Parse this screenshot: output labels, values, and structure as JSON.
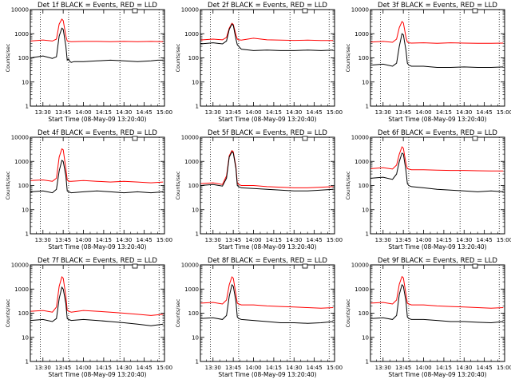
{
  "figure": {
    "background": "#ffffff",
    "event_color": "#000000",
    "lld_color": "#ff0000"
  },
  "chart_data": [
    {
      "type": "line",
      "title": "Det 1f BLACK = Events, RED = LLD",
      "xlabel": "Start Time (08-May-09 13:20:40)",
      "ylabel": "Counts/sec",
      "xticks": [
        "13:30",
        "13:45",
        "14:00",
        "14:15",
        "14:30",
        "14:45",
        "15:00"
      ],
      "xlim_minutes": [
        20.67,
        120
      ],
      "yscale": "log",
      "ylim": [
        1,
        10000
      ],
      "yticks": [
        "1",
        "10",
        "100",
        "1000",
        "10000"
      ],
      "vlines_minutes": [
        28,
        49,
        87,
        116
      ],
      "series": [
        {
          "name": "Events",
          "color": "#000000",
          "x": [
            21,
            30,
            37,
            40,
            42,
            44,
            45,
            47,
            48,
            49,
            50,
            51,
            53,
            60,
            70,
            80,
            90,
            100,
            110,
            115,
            119
          ],
          "y": [
            100,
            120,
            95,
            110,
            800,
            1700,
            1500,
            300,
            80,
            90,
            70,
            65,
            70,
            70,
            75,
            80,
            75,
            70,
            75,
            80,
            80
          ]
        },
        {
          "name": "LLD",
          "color": "#ff0000",
          "x": [
            21,
            30,
            37,
            40,
            42,
            44,
            45,
            47,
            48,
            49,
            51,
            60,
            70,
            80,
            90,
            100,
            110,
            119
          ],
          "y": [
            500,
            550,
            500,
            600,
            2500,
            4000,
            3500,
            800,
            500,
            480,
            470,
            480,
            480,
            470,
            480,
            470,
            480,
            470
          ]
        }
      ]
    },
    {
      "type": "line",
      "title": "Det 2f BLACK = Events, RED = LLD",
      "xlabel": "Start Time (08-May-09 13:20:40)",
      "ylabel": "Counts/sec",
      "xticks": [
        "13:30",
        "13:45",
        "14:00",
        "14:15",
        "14:30",
        "14:45",
        "15:00"
      ],
      "xlim_minutes": [
        20.67,
        120
      ],
      "yscale": "log",
      "ylim": [
        1,
        10000
      ],
      "yticks": [
        "1",
        "10",
        "100",
        "1000",
        "10000"
      ],
      "vlines_minutes": [
        28,
        49,
        87,
        116
      ],
      "series": [
        {
          "name": "Events",
          "color": "#000000",
          "x": [
            21,
            30,
            37,
            40,
            42,
            44,
            45,
            47,
            48,
            49,
            51,
            60,
            70,
            80,
            90,
            100,
            110,
            119
          ],
          "y": [
            380,
            420,
            380,
            500,
            1500,
            2500,
            2200,
            600,
            350,
            300,
            230,
            200,
            210,
            200,
            200,
            210,
            200,
            210
          ]
        },
        {
          "name": "LLD",
          "color": "#ff0000",
          "x": [
            21,
            30,
            37,
            40,
            42,
            44,
            45,
            47,
            48,
            49,
            51,
            60,
            70,
            80,
            90,
            100,
            110,
            119
          ],
          "y": [
            550,
            600,
            560,
            700,
            1700,
            2700,
            2400,
            900,
            600,
            560,
            540,
            650,
            560,
            540,
            530,
            540,
            520,
            520
          ]
        }
      ]
    },
    {
      "type": "line",
      "title": "Det 3f BLACK = Events, RED = LLD",
      "xlabel": "Start Time (08-May-09 13:20:40)",
      "ylabel": "Counts/sec",
      "xticks": [
        "13:30",
        "13:45",
        "14:00",
        "14:15",
        "14:30",
        "14:45",
        "15:00"
      ],
      "xlim_minutes": [
        20.67,
        120
      ],
      "yscale": "log",
      "ylim": [
        1,
        10000
      ],
      "yticks": [
        "1",
        "10",
        "100",
        "1000",
        "10000"
      ],
      "vlines_minutes": [
        28,
        49,
        87,
        116
      ],
      "series": [
        {
          "name": "Events",
          "color": "#000000",
          "x": [
            21,
            30,
            37,
            40,
            42,
            44,
            45,
            47,
            48,
            49,
            51,
            60,
            70,
            80,
            90,
            100,
            110,
            119
          ],
          "y": [
            50,
            55,
            45,
            60,
            300,
            1000,
            900,
            200,
            60,
            50,
            45,
            45,
            40,
            40,
            42,
            40,
            40,
            42
          ]
        },
        {
          "name": "LLD",
          "color": "#ff0000",
          "x": [
            21,
            30,
            37,
            40,
            42,
            44,
            45,
            47,
            48,
            49,
            51,
            60,
            70,
            80,
            90,
            100,
            110,
            119
          ],
          "y": [
            450,
            480,
            440,
            600,
            1800,
            3200,
            2800,
            700,
            450,
            420,
            410,
            420,
            400,
            420,
            410,
            400,
            400,
            410
          ]
        }
      ]
    },
    {
      "type": "line",
      "title": "Det 4f BLACK = Events, RED = LLD",
      "xlabel": "Start Time (08-May-09 13:20:40)",
      "ylabel": "Counts/sec",
      "xticks": [
        "13:30",
        "13:45",
        "14:00",
        "14:15",
        "14:30",
        "14:45",
        "15:00"
      ],
      "xlim_minutes": [
        20.67,
        120
      ],
      "yscale": "log",
      "ylim": [
        1,
        10000
      ],
      "yticks": [
        "1",
        "10",
        "100",
        "1000",
        "10000"
      ],
      "vlines_minutes": [
        28,
        49,
        87,
        116
      ],
      "series": [
        {
          "name": "Events",
          "color": "#000000",
          "x": [
            21,
            30,
            37,
            40,
            42,
            44,
            45,
            47,
            48,
            49,
            51,
            60,
            70,
            80,
            90,
            100,
            110,
            119
          ],
          "y": [
            55,
            60,
            50,
            70,
            400,
            1100,
            1000,
            250,
            60,
            55,
            50,
            55,
            60,
            55,
            50,
            55,
            50,
            55
          ]
        },
        {
          "name": "LLD",
          "color": "#ff0000",
          "x": [
            21,
            30,
            37,
            40,
            42,
            44,
            45,
            47,
            48,
            49,
            51,
            60,
            70,
            80,
            90,
            100,
            110,
            119
          ],
          "y": [
            160,
            170,
            150,
            200,
            1500,
            3300,
            3000,
            500,
            170,
            150,
            150,
            160,
            150,
            140,
            150,
            140,
            130,
            140
          ]
        }
      ]
    },
    {
      "type": "line",
      "title": "Det 5f BLACK = Events, RED = LLD",
      "xlabel": "Start Time (08-May-09 13:20:40)",
      "ylabel": "Counts/sec",
      "xticks": [
        "13:30",
        "13:45",
        "14:00",
        "14:15",
        "14:30",
        "14:45",
        "15:00"
      ],
      "xlim_minutes": [
        20.67,
        120
      ],
      "yscale": "log",
      "ylim": [
        1,
        10000
      ],
      "yticks": [
        "1",
        "10",
        "100",
        "1000",
        "10000"
      ],
      "vlines_minutes": [
        28,
        49,
        87,
        116
      ],
      "series": [
        {
          "name": "Events",
          "color": "#000000",
          "x": [
            21,
            30,
            37,
            40,
            42,
            44,
            45,
            47,
            48,
            49,
            51,
            60,
            70,
            80,
            90,
            100,
            110,
            119
          ],
          "y": [
            100,
            110,
            95,
            200,
            1500,
            2500,
            2200,
            500,
            100,
            90,
            80,
            75,
            70,
            65,
            60,
            60,
            65,
            70
          ]
        },
        {
          "name": "LLD",
          "color": "#ff0000",
          "x": [
            21,
            30,
            37,
            40,
            42,
            44,
            45,
            47,
            48,
            49,
            51,
            60,
            70,
            80,
            90,
            100,
            110,
            119
          ],
          "y": [
            120,
            130,
            110,
            250,
            1700,
            2800,
            2500,
            600,
            130,
            110,
            100,
            100,
            90,
            85,
            80,
            80,
            85,
            90
          ]
        }
      ]
    },
    {
      "type": "line",
      "title": "Det 6f BLACK = Events, RED = LLD",
      "xlabel": "Start Time (08-May-09 13:20:40)",
      "ylabel": "Counts/sec",
      "xticks": [
        "13:30",
        "13:45",
        "14:00",
        "14:15",
        "14:30",
        "14:45",
        "15:00"
      ],
      "xlim_minutes": [
        20.67,
        120
      ],
      "yscale": "log",
      "ylim": [
        1,
        10000
      ],
      "yticks": [
        "1",
        "10",
        "100",
        "1000",
        "10000"
      ],
      "vlines_minutes": [
        28,
        49,
        87,
        116
      ],
      "series": [
        {
          "name": "Events",
          "color": "#000000",
          "x": [
            21,
            30,
            37,
            40,
            42,
            44,
            45,
            47,
            48,
            49,
            51,
            60,
            70,
            80,
            90,
            100,
            110,
            119
          ],
          "y": [
            200,
            220,
            180,
            300,
            1000,
            2200,
            2000,
            400,
            120,
            100,
            90,
            80,
            70,
            65,
            60,
            55,
            60,
            55
          ]
        },
        {
          "name": "LLD",
          "color": "#ff0000",
          "x": [
            21,
            30,
            37,
            40,
            42,
            44,
            45,
            47,
            48,
            49,
            51,
            60,
            70,
            80,
            90,
            100,
            110,
            119
          ],
          "y": [
            500,
            550,
            480,
            700,
            2000,
            4000,
            3500,
            800,
            500,
            480,
            450,
            450,
            430,
            420,
            420,
            410,
            400,
            400
          ]
        }
      ]
    },
    {
      "type": "line",
      "title": "Det 7f BLACK = Events, RED = LLD",
      "xlabel": "Start Time (08-May-09 13:20:40)",
      "ylabel": "Counts/sec",
      "xticks": [
        "13:30",
        "13:45",
        "14:00",
        "14:15",
        "14:30",
        "14:45",
        "15:00"
      ],
      "xlim_minutes": [
        20.67,
        120
      ],
      "yscale": "log",
      "ylim": [
        1,
        10000
      ],
      "yticks": [
        "1",
        "10",
        "100",
        "1000",
        "10000"
      ],
      "vlines_minutes": [
        28,
        49,
        87,
        116
      ],
      "series": [
        {
          "name": "Events",
          "color": "#000000",
          "x": [
            21,
            30,
            37,
            40,
            42,
            44,
            45,
            47,
            48,
            49,
            51,
            60,
            70,
            80,
            90,
            100,
            110,
            119
          ],
          "y": [
            50,
            55,
            45,
            60,
            400,
            1200,
            1000,
            250,
            60,
            55,
            50,
            55,
            50,
            45,
            40,
            35,
            30,
            35
          ]
        },
        {
          "name": "LLD",
          "color": "#ff0000",
          "x": [
            21,
            30,
            37,
            40,
            42,
            44,
            45,
            47,
            48,
            49,
            51,
            60,
            70,
            80,
            90,
            100,
            110,
            119
          ],
          "y": [
            120,
            130,
            110,
            180,
            1300,
            3200,
            2800,
            500,
            130,
            120,
            110,
            130,
            120,
            110,
            100,
            90,
            80,
            90
          ]
        }
      ]
    },
    {
      "type": "line",
      "title": "Det 8f BLACK = Events, RED = LLD",
      "xlabel": "Start Time (08-May-09 13:20:40)",
      "ylabel": "Counts/sec",
      "xticks": [
        "13:30",
        "13:45",
        "14:00",
        "14:15",
        "14:30",
        "14:45",
        "15:00"
      ],
      "xlim_minutes": [
        20.67,
        120
      ],
      "yscale": "log",
      "ylim": [
        1,
        10000
      ],
      "yticks": [
        "1",
        "10",
        "100",
        "1000",
        "10000"
      ],
      "vlines_minutes": [
        28,
        49,
        87,
        116
      ],
      "series": [
        {
          "name": "Events",
          "color": "#000000",
          "x": [
            21,
            30,
            37,
            40,
            42,
            44,
            45,
            47,
            48,
            49,
            51,
            60,
            70,
            80,
            90,
            100,
            110,
            119
          ],
          "y": [
            60,
            65,
            55,
            80,
            500,
            1500,
            1300,
            300,
            70,
            60,
            55,
            50,
            45,
            40,
            40,
            38,
            40,
            45
          ]
        },
        {
          "name": "LLD",
          "color": "#ff0000",
          "x": [
            21,
            30,
            37,
            40,
            42,
            44,
            45,
            47,
            48,
            49,
            51,
            60,
            70,
            80,
            90,
            100,
            110,
            119
          ],
          "y": [
            260,
            280,
            240,
            350,
            1500,
            3200,
            2800,
            600,
            260,
            240,
            220,
            220,
            200,
            190,
            180,
            170,
            160,
            170
          ]
        }
      ]
    },
    {
      "type": "line",
      "title": "Det 9f BLACK = Events, RED = LLD",
      "xlabel": "Start Time (08-May-09 13:20:40)",
      "ylabel": "Counts/sec",
      "xticks": [
        "13:30",
        "13:45",
        "14:00",
        "14:15",
        "14:30",
        "14:45",
        "15:00"
      ],
      "xlim_minutes": [
        20.67,
        120
      ],
      "yscale": "log",
      "ylim": [
        1,
        10000
      ],
      "yticks": [
        "1",
        "10",
        "100",
        "1000",
        "10000"
      ],
      "vlines_minutes": [
        28,
        49,
        87,
        116
      ],
      "series": [
        {
          "name": "Events",
          "color": "#000000",
          "x": [
            21,
            30,
            37,
            40,
            42,
            44,
            45,
            47,
            48,
            49,
            51,
            60,
            70,
            80,
            90,
            100,
            110,
            119
          ],
          "y": [
            60,
            65,
            55,
            80,
            600,
            1500,
            1300,
            300,
            70,
            60,
            55,
            55,
            50,
            45,
            45,
            42,
            40,
            45
          ]
        },
        {
          "name": "LLD",
          "color": "#ff0000",
          "x": [
            21,
            30,
            37,
            40,
            42,
            44,
            45,
            47,
            48,
            49,
            51,
            60,
            70,
            80,
            90,
            100,
            110,
            119
          ],
          "y": [
            260,
            280,
            240,
            350,
            1600,
            3300,
            2900,
            600,
            260,
            240,
            220,
            220,
            200,
            190,
            180,
            170,
            160,
            170
          ]
        }
      ]
    }
  ]
}
